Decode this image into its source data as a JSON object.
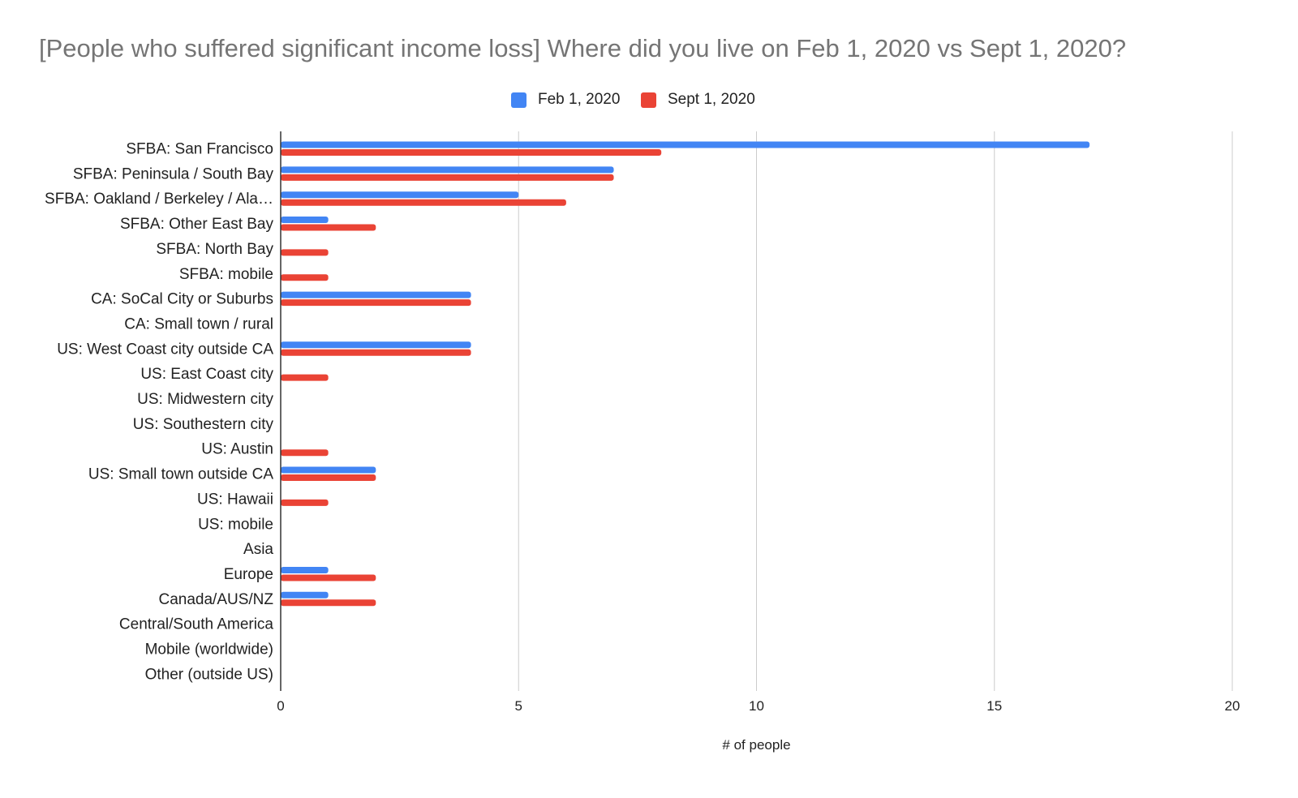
{
  "chart_data": {
    "type": "bar",
    "orientation": "horizontal",
    "title": "[People who suffered significant income loss] Where did you live on Feb 1, 2020 vs Sept 1, 2020?",
    "xlabel": "# of people",
    "ylabel": "",
    "xlim": [
      0,
      20
    ],
    "xticks": [
      0,
      5,
      10,
      15,
      20
    ],
    "grid": true,
    "legend_position": "top-center",
    "categories": [
      "SFBA: San Francisco",
      "SFBA: Peninsula / South Bay",
      "SFBA: Oakland / Berkeley / Ala…",
      "SFBA: Other East Bay",
      "SFBA: North Bay",
      "SFBA: mobile",
      "CA: SoCal City or Suburbs",
      "CA: Small town / rural",
      "US: West Coast city outside CA",
      "US: East Coast city",
      "US: Midwestern city",
      "US: Southestern city",
      "US: Austin",
      "US: Small town outside CA",
      "US: Hawaii",
      "US: mobile",
      "Asia",
      "Europe",
      "Canada/AUS/NZ",
      "Central/South America",
      "Mobile (worldwide)",
      "Other (outside US)"
    ],
    "series": [
      {
        "name": "Feb 1, 2020",
        "color": "#4285f4",
        "values": [
          17,
          7,
          5,
          1,
          0,
          0,
          4,
          0,
          4,
          0,
          0,
          0,
          0,
          2,
          0,
          0,
          0,
          1,
          1,
          0,
          0,
          0
        ]
      },
      {
        "name": "Sept 1, 2020",
        "color": "#ea4335",
        "values": [
          8,
          7,
          6,
          2,
          1,
          1,
          4,
          0,
          4,
          1,
          0,
          0,
          1,
          2,
          1,
          0,
          0,
          2,
          2,
          0,
          0,
          0
        ]
      }
    ]
  }
}
